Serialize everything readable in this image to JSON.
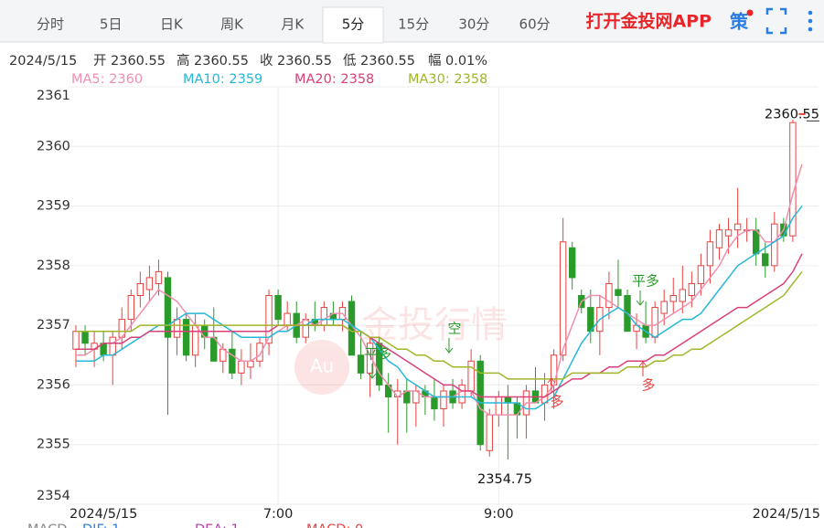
{
  "tabs": [
    "分时",
    "5日",
    "日K",
    "周K",
    "月K",
    "5分",
    "15分",
    "30分",
    "60分"
  ],
  "active_tab": 5,
  "brand": "打开金投网APP",
  "strategy": "策",
  "info": {
    "date": "2024/5/15",
    "fields": [
      [
        "开",
        "2360.55"
      ],
      [
        "高",
        "2360.55"
      ],
      [
        "收",
        "2360.55"
      ],
      [
        "低",
        "2360.55"
      ],
      [
        "幅",
        "0.01%"
      ]
    ]
  },
  "watermark": "金投行情",
  "watermark_logo": "Au",
  "macd_legend": [
    {
      "text": "MACD",
      "color": "#888888"
    },
    {
      "text": "DIF: 1",
      "color": "#2a7de1"
    },
    {
      "text": "DEA: 1",
      "color": "#c03cb0"
    },
    {
      "text": "MACD: 0",
      "color": "#e84040"
    }
  ],
  "chart_data": {
    "type": "candlestick",
    "up_color": "#e8423f",
    "down_color": "#2a9a2a",
    "ylim": [
      2354,
      2361
    ],
    "yticks": [
      2354,
      2355,
      2356,
      2357,
      2358,
      2359,
      2360,
      2361
    ],
    "grid": true,
    "categories": [
      null,
      null,
      null,
      "2024/5/15",
      null,
      null,
      null,
      null,
      null,
      null,
      null,
      null,
      null,
      null,
      null,
      null,
      null,
      null,
      null,
      null,
      null,
      null,
      "7:00",
      null,
      null,
      null,
      null,
      null,
      null,
      null,
      null,
      null,
      null,
      null,
      null,
      null,
      null,
      null,
      null,
      null,
      null,
      null,
      null,
      null,
      null,
      null,
      "9:00",
      null,
      null,
      null,
      null,
      null,
      null,
      null,
      null,
      null,
      null,
      null,
      null,
      null,
      null,
      null,
      null,
      null,
      null,
      null,
      null,
      null,
      null,
      null,
      null,
      null,
      null,
      null,
      null,
      null,
      null,
      "2024/5/15",
      null,
      null
    ],
    "ohlc": [
      [
        2356.6,
        2357.0,
        2356.3,
        2356.9
      ],
      [
        2356.9,
        2357.0,
        2356.5,
        2356.7
      ],
      [
        2356.6,
        2356.9,
        2356.3,
        2356.7
      ],
      [
        2356.7,
        2356.9,
        2356.4,
        2356.5
      ],
      [
        2356.5,
        2356.9,
        2356.0,
        2356.8
      ],
      [
        2356.8,
        2357.3,
        2356.6,
        2357.1
      ],
      [
        2357.1,
        2357.6,
        2356.9,
        2357.5
      ],
      [
        2357.5,
        2357.9,
        2357.3,
        2357.7
      ],
      [
        2357.6,
        2358.0,
        2357.4,
        2357.8
      ],
      [
        2357.7,
        2358.1,
        2357.5,
        2357.9
      ],
      [
        2357.8,
        2357.9,
        2355.5,
        2356.8
      ],
      [
        2356.8,
        2357.3,
        2356.5,
        2357.1
      ],
      [
        2357.1,
        2357.2,
        2356.4,
        2356.5
      ],
      [
        2356.5,
        2357.2,
        2356.3,
        2357.0
      ],
      [
        2357.0,
        2357.1,
        2356.6,
        2356.8
      ],
      [
        2356.8,
        2357.3,
        2356.4,
        2356.4
      ],
      [
        2356.4,
        2356.7,
        2356.2,
        2356.6
      ],
      [
        2356.6,
        2356.9,
        2356.1,
        2356.2
      ],
      [
        2356.2,
        2356.6,
        2356.0,
        2356.4
      ],
      [
        2356.3,
        2356.7,
        2356.1,
        2356.4
      ],
      [
        2356.4,
        2356.8,
        2356.3,
        2356.7
      ],
      [
        2356.7,
        2357.6,
        2356.5,
        2357.5
      ],
      [
        2357.5,
        2357.6,
        2357.0,
        2357.1
      ],
      [
        2357.0,
        2357.4,
        2356.9,
        2357.2
      ],
      [
        2357.2,
        2357.4,
        2356.7,
        2356.8
      ],
      [
        2356.8,
        2357.2,
        2356.7,
        2357.1
      ],
      [
        2357.1,
        2357.4,
        2356.9,
        2357.0
      ],
      [
        2357.0,
        2357.4,
        2356.9,
        2357.3
      ],
      [
        2357.2,
        2357.4,
        2357.0,
        2357.1
      ],
      [
        2357.1,
        2357.4,
        2356.9,
        2357.3
      ],
      [
        2357.4,
        2357.5,
        2356.5,
        2356.5
      ],
      [
        2356.5,
        2356.9,
        2356.1,
        2356.2
      ],
      [
        2356.2,
        2356.8,
        2355.8,
        2356.7
      ],
      [
        2356.7,
        2356.8,
        2355.9,
        2356.0
      ],
      [
        2356.0,
        2356.2,
        2355.2,
        2355.8
      ],
      [
        2355.8,
        2356.1,
        2355.0,
        2355.9
      ],
      [
        2355.9,
        2356.1,
        2355.2,
        2355.7
      ],
      [
        2355.7,
        2356.0,
        2355.3,
        2355.9
      ],
      [
        2355.9,
        2356.0,
        2355.5,
        2355.8
      ],
      [
        2355.8,
        2356.1,
        2355.4,
        2355.6
      ],
      [
        2355.6,
        2356.0,
        2355.3,
        2355.9
      ],
      [
        2355.9,
        2356.1,
        2355.6,
        2355.7
      ],
      [
        2355.7,
        2356.1,
        2355.6,
        2356.0
      ],
      [
        2355.9,
        2356.6,
        2355.8,
        2356.4
      ],
      [
        2356.4,
        2356.5,
        2354.9,
        2355.0
      ],
      [
        2354.9,
        2355.6,
        2354.8,
        2355.5
      ],
      [
        2355.5,
        2355.9,
        2355.3,
        2355.8
      ],
      [
        2355.8,
        2356.0,
        2354.75,
        2355.7
      ],
      [
        2355.7,
        2355.8,
        2355.1,
        2355.5
      ],
      [
        2355.5,
        2356.0,
        2355.1,
        2355.9
      ],
      [
        2355.9,
        2356.3,
        2355.7,
        2355.7
      ],
      [
        2355.7,
        2356.2,
        2355.4,
        2356.0
      ],
      [
        2356.0,
        2356.6,
        2355.6,
        2356.5
      ],
      [
        2356.5,
        2358.8,
        2356.4,
        2358.4
      ],
      [
        2358.3,
        2358.4,
        2357.6,
        2357.8
      ],
      [
        2357.5,
        2357.6,
        2357.2,
        2357.3
      ],
      [
        2357.3,
        2357.6,
        2356.7,
        2356.9
      ],
      [
        2356.9,
        2357.5,
        2356.5,
        2357.3
      ],
      [
        2357.3,
        2357.9,
        2357.1,
        2357.7
      ],
      [
        2357.6,
        2358.1,
        2357.3,
        2357.5
      ],
      [
        2357.5,
        2357.6,
        2356.9,
        2356.9
      ],
      [
        2356.9,
        2357.2,
        2356.6,
        2357.0
      ],
      [
        2357.0,
        2357.4,
        2356.7,
        2356.8
      ],
      [
        2356.8,
        2357.4,
        2356.7,
        2357.3
      ],
      [
        2357.2,
        2357.6,
        2357.0,
        2357.4
      ],
      [
        2357.4,
        2357.8,
        2357.2,
        2357.5
      ],
      [
        2357.4,
        2358.0,
        2357.2,
        2357.6
      ],
      [
        2357.5,
        2357.9,
        2357.3,
        2357.7
      ],
      [
        2357.7,
        2358.2,
        2357.5,
        2358.0
      ],
      [
        2358.0,
        2358.6,
        2357.7,
        2358.4
      ],
      [
        2358.3,
        2358.7,
        2358.1,
        2358.6
      ],
      [
        2358.5,
        2358.8,
        2358.2,
        2358.6
      ],
      [
        2358.6,
        2359.3,
        2358.3,
        2358.7
      ],
      [
        2358.6,
        2358.8,
        2358.4,
        2358.6
      ],
      [
        2358.6,
        2358.8,
        2358.0,
        2358.2
      ],
      [
        2358.2,
        2358.4,
        2357.8,
        2358.0
      ],
      [
        2358.0,
        2358.9,
        2357.9,
        2358.7
      ],
      [
        2358.7,
        2358.8,
        2358.4,
        2358.5
      ],
      [
        2358.5,
        2360.45,
        2358.4,
        2360.4
      ],
      [
        2360.55,
        2360.55,
        2360.55,
        2360.55
      ]
    ],
    "series": [
      {
        "name": "MA5: 2360",
        "color": "#f08fb0",
        "values": [
          2356.5,
          2356.5,
          2356.6,
          2356.7,
          2356.7,
          2356.8,
          2357.0,
          2357.2,
          2357.4,
          2357.6,
          2357.5,
          2357.4,
          2357.2,
          2357.0,
          2356.8,
          2356.8,
          2356.6,
          2356.5,
          2356.4,
          2356.4,
          2356.5,
          2356.8,
          2356.9,
          2357.0,
          2357.0,
          2357.1,
          2357.0,
          2357.1,
          2357.2,
          2357.2,
          2357.0,
          2356.8,
          2356.5,
          2356.2,
          2356.0,
          2355.8,
          2355.9,
          2355.9,
          2355.8,
          2355.8,
          2355.8,
          2355.8,
          2355.9,
          2355.9,
          2355.6,
          2355.5,
          2355.5,
          2355.5,
          2355.5,
          2355.7,
          2355.7,
          2355.8,
          2356.0,
          2356.6,
          2357.0,
          2357.4,
          2357.5,
          2357.5,
          2357.4,
          2357.3,
          2357.2,
          2357.1,
          2357.0,
          2357.0,
          2357.1,
          2357.2,
          2357.3,
          2357.4,
          2357.6,
          2357.8,
          2358.0,
          2358.3,
          2358.5,
          2358.6,
          2358.6,
          2358.4,
          2358.4,
          2358.6,
          2359.2,
          2359.7
        ]
      },
      {
        "name": "MA10: 2359",
        "color": "#26b8d8",
        "values": [
          2356.4,
          2356.4,
          2356.4,
          2356.5,
          2356.5,
          2356.6,
          2356.7,
          2356.8,
          2356.9,
          2357.0,
          2357.0,
          2357.1,
          2357.2,
          2357.2,
          2357.2,
          2357.1,
          2357.0,
          2356.9,
          2356.8,
          2356.8,
          2356.8,
          2356.8,
          2356.9,
          2356.9,
          2357.0,
          2357.0,
          2357.1,
          2357.1,
          2357.1,
          2357.1,
          2357.0,
          2356.9,
          2356.8,
          2356.6,
          2356.4,
          2356.3,
          2356.1,
          2356.0,
          2355.9,
          2355.8,
          2355.8,
          2355.8,
          2355.8,
          2355.8,
          2355.7,
          2355.7,
          2355.7,
          2355.7,
          2355.7,
          2355.6,
          2355.6,
          2355.7,
          2355.8,
          2356.1,
          2356.4,
          2356.7,
          2356.9,
          2357.1,
          2357.2,
          2357.3,
          2357.2,
          2357.0,
          2356.9,
          2356.8,
          2356.9,
          2357.0,
          2357.1,
          2357.1,
          2357.2,
          2357.4,
          2357.6,
          2357.8,
          2358.0,
          2358.1,
          2358.2,
          2358.3,
          2358.4,
          2358.5,
          2358.8,
          2359.0
        ]
      },
      {
        "name": "MA20: 2358",
        "color": "#d9407a",
        "values": [
          2356.6,
          2356.6,
          2356.6,
          2356.7,
          2356.7,
          2356.7,
          2356.8,
          2356.8,
          2356.9,
          2356.9,
          2356.9,
          2356.9,
          2356.9,
          2356.9,
          2356.9,
          2356.9,
          2356.9,
          2356.9,
          2356.9,
          2356.9,
          2356.9,
          2356.9,
          2357.0,
          2357.0,
          2357.0,
          2357.0,
          2357.0,
          2357.0,
          2357.0,
          2357.0,
          2356.9,
          2356.9,
          2356.8,
          2356.7,
          2356.6,
          2356.5,
          2356.4,
          2356.3,
          2356.2,
          2356.1,
          2356.0,
          2356.0,
          2355.9,
          2355.9,
          2355.8,
          2355.8,
          2355.8,
          2355.8,
          2355.8,
          2355.8,
          2355.8,
          2355.8,
          2355.9,
          2356.0,
          2356.1,
          2356.1,
          2356.2,
          2356.2,
          2356.3,
          2356.3,
          2356.4,
          2356.4,
          2356.4,
          2356.5,
          2356.5,
          2356.6,
          2356.7,
          2356.8,
          2356.9,
          2357.0,
          2357.1,
          2357.2,
          2357.3,
          2357.3,
          2357.4,
          2357.5,
          2357.6,
          2357.7,
          2357.9,
          2358.2
        ]
      },
      {
        "name": "MA30: 2358",
        "color": "#a3b52a",
        "values": [
          2356.9,
          2356.9,
          2356.9,
          2356.9,
          2356.9,
          2356.9,
          2356.9,
          2357.0,
          2357.0,
          2357.0,
          2357.0,
          2357.0,
          2357.0,
          2357.0,
          2357.0,
          2357.0,
          2357.0,
          2357.0,
          2357.0,
          2357.0,
          2357.0,
          2357.0,
          2357.0,
          2357.0,
          2357.0,
          2357.0,
          2357.0,
          2357.0,
          2357.0,
          2357.0,
          2356.9,
          2356.9,
          2356.8,
          2356.8,
          2356.7,
          2356.6,
          2356.6,
          2356.5,
          2356.5,
          2356.4,
          2356.4,
          2356.3,
          2356.3,
          2356.3,
          2356.2,
          2356.2,
          2356.2,
          2356.1,
          2356.1,
          2356.1,
          2356.1,
          2356.1,
          2356.1,
          2356.1,
          2356.2,
          2356.2,
          2356.2,
          2356.2,
          2356.2,
          2356.2,
          2356.3,
          2356.3,
          2356.3,
          2356.4,
          2356.4,
          2356.5,
          2356.5,
          2356.6,
          2356.6,
          2356.7,
          2356.8,
          2356.9,
          2357.0,
          2357.1,
          2357.2,
          2357.3,
          2357.4,
          2357.5,
          2357.7,
          2357.9
        ]
      }
    ],
    "annotations": {
      "max": 2360.55,
      "min": 2354.75
    },
    "signals": [
      {
        "text": "平多",
        "color": "#2a9a2a"
      },
      {
        "text": "空",
        "color": "#2a9a2a"
      },
      {
        "text": "多",
        "color": "#e8423f"
      },
      {
        "text": "平多",
        "color": "#2a9a2a"
      },
      {
        "text": "多",
        "color": "#e8423f"
      }
    ]
  }
}
